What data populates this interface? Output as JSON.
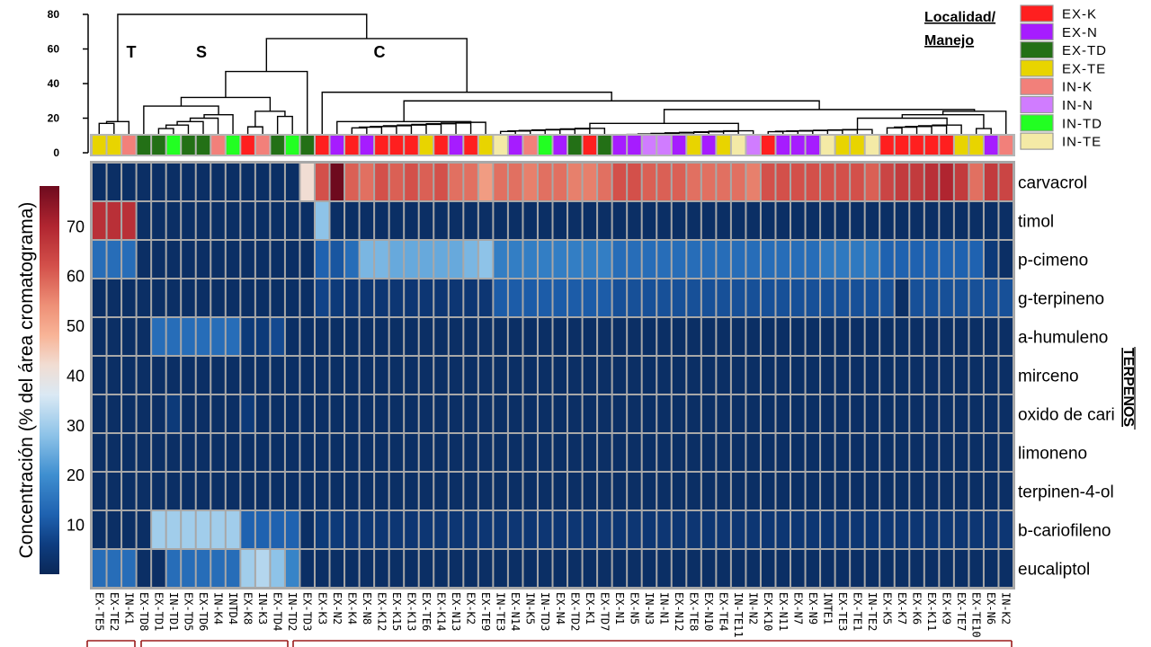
{
  "chart_data": {
    "type": "heatmap",
    "title": "",
    "dendrogram_axis": {
      "ticks": [
        0,
        20,
        40,
        60,
        80
      ]
    },
    "cluster_labels": [
      "T",
      "S",
      "C"
    ],
    "legend": {
      "title_lines": [
        "Localidad/",
        "Manejo"
      ],
      "entries": [
        {
          "label": "EX-K",
          "color": "#ff1f1f"
        },
        {
          "label": "EX-N",
          "color": "#a61cff"
        },
        {
          "label": "EX-TD",
          "color": "#237016"
        },
        {
          "label": "EX-TE",
          "color": "#e8d400"
        },
        {
          "label": "IN-K",
          "color": "#f2807a"
        },
        {
          "label": "IN-N",
          "color": "#d07cff"
        },
        {
          "label": "IN-TD",
          "color": "#22ff22"
        },
        {
          "label": "IN-TE",
          "color": "#f4eaa6"
        }
      ]
    },
    "colorbar": {
      "label": "Concentración (% del área cromatograma)",
      "ticks": [
        10,
        20,
        30,
        40,
        50,
        60,
        70
      ],
      "range": [
        0,
        78
      ]
    },
    "group_label": "TERPENOS",
    "rows": [
      "carvacrol",
      "timol",
      "p-cimeno",
      "g-terpineno",
      "a-humuleno",
      "mirceno",
      "oxido de cari",
      "limoneno",
      "terpinen-4-ol",
      "b-cariofileno",
      "eucaliptol"
    ],
    "columns": [
      "EX-TE5",
      "EX-TE2",
      "IN-K1",
      "EX-TD8",
      "EX-TD1",
      "IN-TD1",
      "EX-TD5",
      "EX-TD6",
      "IN-K4",
      "INTD4",
      "EX-K8",
      "IN-K3",
      "EX-TD4",
      "IN-TD2",
      "EX-TD3",
      "EX-K3",
      "EX-N2",
      "EX-K4",
      "EX-N8",
      "EX-K12",
      "EX-K15",
      "EX-K13",
      "EX-TE6",
      "EX-K14",
      "EX-N13",
      "EX-K2",
      "EX-TE9",
      "IN-TE3",
      "EX-N14",
      "IN-K5",
      "IN-TD3",
      "EX-N4",
      "EX-TD2",
      "EX-K1",
      "EX-TD7",
      "EX-N1",
      "EX-N5",
      "IN-N3",
      "IN-N1",
      "EX-N12",
      "EX-TE8",
      "EX-N10",
      "EX-TE4",
      "IN-TE11",
      "IN-N2",
      "EX-K10",
      "EX-N11",
      "EX-N7",
      "EX-N9",
      "INTE1",
      "EX-TE3",
      "EX-TE1",
      "IN-TE2",
      "EX-K5",
      "EX-K7",
      "EX-K6",
      "EX-K11",
      "EX-K9",
      "EX-TE7",
      "EX-TE10",
      "EX-N6",
      "IN-K2"
    ],
    "column_groups": [
      "EX-TE",
      "EX-TE",
      "IN-K",
      "EX-TD",
      "EX-TD",
      "IN-TD",
      "EX-TD",
      "EX-TD",
      "IN-K",
      "IN-TD",
      "EX-K",
      "IN-K",
      "EX-TD",
      "IN-TD",
      "EX-TD",
      "EX-K",
      "EX-N",
      "EX-K",
      "EX-N",
      "EX-K",
      "EX-K",
      "EX-K",
      "EX-TE",
      "EX-K",
      "EX-N",
      "EX-K",
      "EX-TE",
      "IN-TE",
      "EX-N",
      "IN-K",
      "IN-TD",
      "EX-N",
      "EX-TD",
      "EX-K",
      "EX-TD",
      "EX-N",
      "EX-N",
      "IN-N",
      "IN-N",
      "EX-N",
      "EX-TE",
      "EX-N",
      "EX-TE",
      "IN-TE",
      "IN-N",
      "EX-K",
      "EX-N",
      "EX-N",
      "EX-N",
      "IN-TE",
      "EX-TE",
      "EX-TE",
      "IN-TE",
      "EX-K",
      "EX-K",
      "EX-K",
      "EX-K",
      "EX-K",
      "EX-TE",
      "EX-TE",
      "EX-N",
      "IN-K"
    ],
    "values": [
      [
        2,
        2,
        2,
        2,
        2,
        2,
        2,
        2,
        2,
        2,
        2,
        2,
        2,
        2,
        42,
        62,
        78,
        60,
        58,
        62,
        60,
        62,
        60,
        62,
        58,
        58,
        52,
        58,
        58,
        56,
        58,
        58,
        56,
        56,
        58,
        62,
        62,
        60,
        60,
        60,
        58,
        58,
        58,
        58,
        56,
        62,
        62,
        62,
        62,
        62,
        62,
        62,
        60,
        64,
        66,
        66,
        68,
        70,
        66,
        58,
        66,
        64
      ],
      [
        68,
        68,
        68,
        2,
        2,
        2,
        2,
        2,
        2,
        2,
        2,
        2,
        2,
        2,
        2,
        28,
        2,
        2,
        2,
        2,
        2,
        2,
        2,
        2,
        2,
        2,
        2,
        2,
        2,
        2,
        2,
        2,
        2,
        2,
        2,
        2,
        2,
        2,
        2,
        2,
        2,
        2,
        2,
        2,
        2,
        2,
        2,
        2,
        2,
        2,
        2,
        2,
        2,
        2,
        2,
        2,
        2,
        2,
        2,
        2,
        2,
        2
      ],
      [
        14,
        14,
        14,
        2,
        2,
        2,
        2,
        2,
        2,
        2,
        2,
        2,
        2,
        2,
        2,
        12,
        10,
        14,
        26,
        26,
        24,
        24,
        24,
        24,
        24,
        26,
        28,
        17,
        17,
        17,
        17,
        17,
        17,
        17,
        17,
        14,
        14,
        14,
        14,
        14,
        14,
        14,
        14,
        14,
        14,
        14,
        14,
        14,
        14,
        16,
        16,
        16,
        16,
        12,
        12,
        12,
        12,
        12,
        12,
        12,
        5,
        2
      ],
      [
        2,
        2,
        2,
        2,
        2,
        2,
        2,
        2,
        2,
        2,
        2,
        2,
        2,
        2,
        2,
        7,
        5,
        4,
        4,
        4,
        4,
        4,
        4,
        4,
        4,
        4,
        4,
        11,
        11,
        11,
        11,
        11,
        11,
        11,
        11,
        9,
        9,
        9,
        9,
        9,
        9,
        9,
        9,
        9,
        9,
        9,
        9,
        9,
        9,
        9,
        9,
        9,
        9,
        9,
        2,
        9,
        9,
        9,
        9,
        9,
        9,
        9
      ],
      [
        2,
        2,
        2,
        2,
        14,
        14,
        14,
        14,
        14,
        14,
        5,
        5,
        8,
        2,
        2,
        2,
        2,
        2,
        2,
        2,
        2,
        2,
        2,
        2,
        2,
        2,
        2,
        2,
        2,
        2,
        2,
        2,
        2,
        2,
        2,
        2,
        2,
        2,
        2,
        2,
        2,
        2,
        2,
        2,
        2,
        2,
        2,
        2,
        2,
        2,
        2,
        2,
        2,
        2,
        2,
        2,
        2,
        2,
        2,
        2,
        2,
        2
      ],
      [
        2,
        2,
        2,
        2,
        2,
        2,
        2,
        2,
        2,
        2,
        2,
        2,
        2,
        2,
        2,
        2,
        2,
        2,
        2,
        2,
        2,
        2,
        2,
        2,
        2,
        2,
        2,
        2,
        2,
        2,
        2,
        2,
        2,
        2,
        2,
        2,
        2,
        2,
        2,
        2,
        2,
        2,
        2,
        2,
        2,
        2,
        2,
        2,
        2,
        2,
        2,
        2,
        2,
        2,
        2,
        2,
        2,
        2,
        2,
        2,
        2,
        2
      ],
      [
        2,
        2,
        2,
        2,
        2,
        5,
        2,
        2,
        2,
        2,
        5,
        2,
        2,
        2,
        2,
        2,
        2,
        2,
        2,
        2,
        2,
        2,
        2,
        2,
        2,
        2,
        2,
        2,
        2,
        2,
        2,
        2,
        2,
        2,
        2,
        2,
        2,
        2,
        2,
        2,
        2,
        2,
        2,
        2,
        2,
        2,
        2,
        2,
        2,
        2,
        2,
        2,
        2,
        2,
        2,
        2,
        2,
        2,
        2,
        2,
        2,
        2
      ],
      [
        2,
        2,
        2,
        2,
        2,
        2,
        2,
        2,
        2,
        2,
        2,
        2,
        2,
        2,
        2,
        2,
        2,
        2,
        2,
        2,
        2,
        2,
        2,
        2,
        2,
        2,
        2,
        2,
        2,
        2,
        2,
        2,
        2,
        2,
        2,
        2,
        2,
        2,
        2,
        2,
        2,
        2,
        2,
        2,
        2,
        2,
        2,
        2,
        2,
        2,
        2,
        2,
        2,
        2,
        2,
        2,
        2,
        2,
        2,
        2,
        2,
        2
      ],
      [
        2,
        2,
        2,
        2,
        2,
        2,
        2,
        2,
        2,
        2,
        2,
        2,
        2,
        2,
        2,
        2,
        2,
        2,
        2,
        2,
        2,
        2,
        2,
        2,
        2,
        2,
        2,
        2,
        2,
        2,
        2,
        2,
        2,
        2,
        2,
        2,
        2,
        2,
        2,
        2,
        2,
        2,
        2,
        2,
        2,
        2,
        2,
        2,
        2,
        2,
        2,
        2,
        2,
        2,
        2,
        2,
        2,
        2,
        2,
        2,
        2,
        2
      ],
      [
        2,
        2,
        2,
        2,
        30,
        30,
        30,
        30,
        30,
        30,
        12,
        12,
        12,
        12,
        2,
        5,
        5,
        4,
        4,
        4,
        4,
        4,
        4,
        4,
        4,
        4,
        4,
        4,
        4,
        4,
        4,
        4,
        4,
        4,
        4,
        4,
        4,
        4,
        4,
        4,
        4,
        4,
        4,
        4,
        4,
        4,
        4,
        4,
        4,
        4,
        4,
        4,
        4,
        4,
        4,
        4,
        4,
        4,
        4,
        4,
        4,
        4
      ],
      [
        14,
        14,
        14,
        2,
        2,
        14,
        14,
        14,
        14,
        14,
        30,
        32,
        28,
        18,
        2,
        2,
        2,
        2,
        2,
        2,
        2,
        2,
        2,
        2,
        2,
        2,
        2,
        2,
        2,
        2,
        2,
        2,
        2,
        2,
        2,
        2,
        2,
        2,
        2,
        2,
        2,
        2,
        2,
        2,
        2,
        2,
        2,
        2,
        2,
        2,
        2,
        2,
        2,
        2,
        2,
        2,
        2,
        2,
        2,
        2,
        2,
        2
      ]
    ]
  }
}
